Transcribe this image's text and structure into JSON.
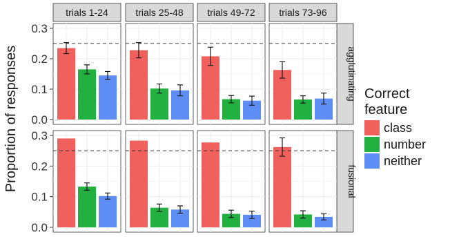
{
  "chart_data": {
    "type": "bar",
    "title": "",
    "xlabel": "",
    "ylabel": "Proportion of responses",
    "ylim": [
      0,
      0.3
    ],
    "yticks": [
      "0.0",
      "0.1",
      "0.2",
      "0.3"
    ],
    "reference_line": {
      "y": 0.25,
      "style": "dashed"
    },
    "grid": true,
    "column_facets": [
      "trials 1-24",
      "trials 25-48",
      "trials 49-72",
      "trials 73-96"
    ],
    "row_facets": [
      "agglutinating",
      "fusional"
    ],
    "legend": {
      "title": "Correct feature",
      "position": "right",
      "entries": [
        "class",
        "number",
        "neither"
      ]
    },
    "colors": {
      "class": "#f0605c",
      "number": "#22b040",
      "neither": "#5e8ef5"
    },
    "series": [
      {
        "name": "class",
        "values": [
          [
            0.235,
            0.228,
            0.208,
            0.163
          ],
          [
            0.29,
            0.283,
            0.277,
            0.262
          ]
        ],
        "errors": [
          [
            0.018,
            0.025,
            0.03,
            0.027
          ],
          [
            0,
            0,
            0,
            0.03
          ]
        ]
      },
      {
        "name": "number",
        "values": [
          [
            0.165,
            0.102,
            0.067,
            0.066
          ],
          [
            0.133,
            0.064,
            0.044,
            0.042
          ]
        ],
        "errors": [
          [
            0.015,
            0.015,
            0.012,
            0.012
          ],
          [
            0.012,
            0.012,
            0.012,
            0.012
          ]
        ]
      },
      {
        "name": "neither",
        "values": [
          [
            0.145,
            0.096,
            0.062,
            0.069
          ],
          [
            0.102,
            0.058,
            0.041,
            0.034
          ]
        ],
        "errors": [
          [
            0.013,
            0.018,
            0.015,
            0.018
          ],
          [
            0.01,
            0.012,
            0.012,
            0.01
          ]
        ]
      }
    ]
  }
}
